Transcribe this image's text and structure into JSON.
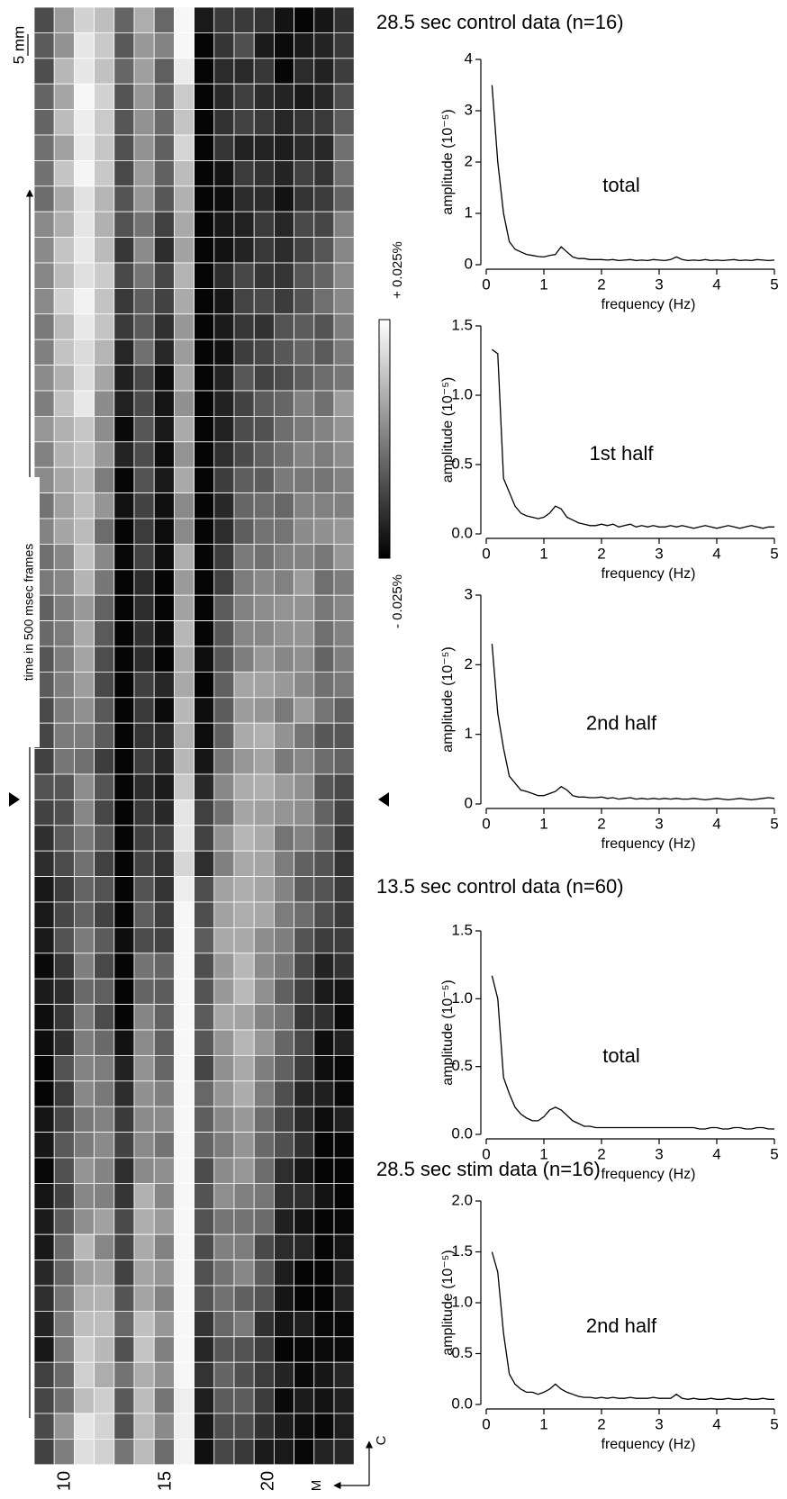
{
  "image_panel": {
    "scale_label": "5 mm",
    "time_label": "time  in  500 msec  frames",
    "colorbar_top": "+ 0.025%",
    "colorbar_bottom": "- 0.025%",
    "column_labels": [
      "10",
      "15",
      "20"
    ],
    "axis_m": "M",
    "axis_c": "C"
  },
  "chart_data": [
    {
      "type": "line",
      "title": "28.5 sec control data (n=16)",
      "annotation": "total",
      "x_label": "frequency (Hz)",
      "y_label": "amplitude (10⁻⁵)",
      "color": "#000000",
      "xlim": [
        0,
        5
      ],
      "xticks": [
        0,
        1,
        2,
        3,
        4,
        5
      ],
      "ylim": [
        0,
        4
      ],
      "yticks": [
        0,
        1,
        2,
        3,
        4
      ],
      "x": [
        0.1,
        0.2,
        0.3,
        0.4,
        0.5,
        0.6,
        0.7,
        0.8,
        0.9,
        1.0,
        1.1,
        1.2,
        1.3,
        1.4,
        1.5,
        1.6,
        1.7,
        1.8,
        1.9,
        2.0,
        2.1,
        2.2,
        2.3,
        2.4,
        2.5,
        2.6,
        2.7,
        2.8,
        2.9,
        3.0,
        3.1,
        3.2,
        3.3,
        3.4,
        3.5,
        3.6,
        3.7,
        3.8,
        3.9,
        4.0,
        4.1,
        4.2,
        4.3,
        4.4,
        4.5,
        4.6,
        4.7,
        4.8,
        4.9,
        5.0
      ],
      "values": [
        3.5,
        2.0,
        1.0,
        0.45,
        0.3,
        0.25,
        0.2,
        0.18,
        0.16,
        0.15,
        0.18,
        0.2,
        0.35,
        0.25,
        0.15,
        0.12,
        0.12,
        0.1,
        0.1,
        0.1,
        0.09,
        0.1,
        0.08,
        0.09,
        0.1,
        0.08,
        0.09,
        0.08,
        0.1,
        0.09,
        0.08,
        0.1,
        0.15,
        0.1,
        0.08,
        0.09,
        0.08,
        0.1,
        0.08,
        0.09,
        0.08,
        0.09,
        0.1,
        0.08,
        0.09,
        0.08,
        0.1,
        0.09,
        0.08,
        0.09
      ]
    },
    {
      "type": "line",
      "annotation": "1st half",
      "x_label": "frequency (Hz)",
      "y_label": "amplitude (10⁻⁵)",
      "color": "#000000",
      "xlim": [
        0,
        5
      ],
      "xticks": [
        0,
        1,
        2,
        3,
        4,
        5
      ],
      "ylim": [
        0,
        1.5
      ],
      "yticks": [
        {
          "value": 0,
          "label": "0.0"
        },
        0.5,
        {
          "value": 1,
          "label": "1.0"
        },
        1.5
      ],
      "x": [
        0.1,
        0.2,
        0.3,
        0.4,
        0.5,
        0.6,
        0.7,
        0.8,
        0.9,
        1.0,
        1.1,
        1.2,
        1.3,
        1.4,
        1.5,
        1.6,
        1.7,
        1.8,
        1.9,
        2.0,
        2.1,
        2.2,
        2.3,
        2.4,
        2.5,
        2.6,
        2.7,
        2.8,
        2.9,
        3.0,
        3.1,
        3.2,
        3.3,
        3.4,
        3.5,
        3.6,
        3.7,
        3.8,
        3.9,
        4.0,
        4.1,
        4.2,
        4.3,
        4.4,
        4.5,
        4.6,
        4.7,
        4.8,
        4.9,
        5.0
      ],
      "values": [
        1.33,
        1.3,
        0.4,
        0.3,
        0.2,
        0.15,
        0.13,
        0.12,
        0.11,
        0.12,
        0.15,
        0.2,
        0.18,
        0.12,
        0.1,
        0.08,
        0.07,
        0.06,
        0.06,
        0.07,
        0.06,
        0.07,
        0.05,
        0.06,
        0.07,
        0.05,
        0.06,
        0.05,
        0.06,
        0.05,
        0.05,
        0.06,
        0.05,
        0.06,
        0.05,
        0.04,
        0.05,
        0.06,
        0.05,
        0.04,
        0.05,
        0.06,
        0.05,
        0.04,
        0.05,
        0.06,
        0.05,
        0.04,
        0.05,
        0.05
      ]
    },
    {
      "type": "line",
      "annotation": "2nd half",
      "x_label": "frequency (Hz)",
      "y_label": "amplitude (10⁻⁵)",
      "color": "#000000",
      "xlim": [
        0,
        5
      ],
      "xticks": [
        0,
        1,
        2,
        3,
        4,
        5
      ],
      "ylim": [
        0,
        3
      ],
      "yticks": [
        0,
        1,
        2,
        3
      ],
      "x": [
        0.1,
        0.2,
        0.3,
        0.4,
        0.5,
        0.6,
        0.7,
        0.8,
        0.9,
        1.0,
        1.1,
        1.2,
        1.3,
        1.4,
        1.5,
        1.6,
        1.7,
        1.8,
        1.9,
        2.0,
        2.1,
        2.2,
        2.3,
        2.4,
        2.5,
        2.6,
        2.7,
        2.8,
        2.9,
        3.0,
        3.1,
        3.2,
        3.3,
        3.4,
        3.5,
        3.6,
        3.7,
        3.8,
        3.9,
        4.0,
        4.1,
        4.2,
        4.3,
        4.4,
        4.5,
        4.6,
        4.7,
        4.8,
        4.9,
        5.0
      ],
      "values": [
        2.3,
        1.3,
        0.8,
        0.4,
        0.3,
        0.2,
        0.18,
        0.15,
        0.12,
        0.12,
        0.15,
        0.18,
        0.25,
        0.2,
        0.12,
        0.1,
        0.1,
        0.09,
        0.09,
        0.1,
        0.08,
        0.09,
        0.07,
        0.08,
        0.09,
        0.07,
        0.08,
        0.07,
        0.08,
        0.07,
        0.08,
        0.07,
        0.08,
        0.07,
        0.07,
        0.08,
        0.07,
        0.06,
        0.07,
        0.08,
        0.07,
        0.06,
        0.07,
        0.08,
        0.07,
        0.06,
        0.07,
        0.08,
        0.09,
        0.08
      ]
    },
    {
      "type": "line",
      "title": "13.5 sec control data (n=60)",
      "annotation": "total",
      "x_label": "frequency (Hz)",
      "y_label": "amplitude (10⁻⁵)",
      "color": "#000000",
      "xlim": [
        0,
        5
      ],
      "xticks": [
        0,
        1,
        2,
        3,
        4,
        5
      ],
      "ylim": [
        0,
        1.5
      ],
      "yticks": [
        {
          "value": 0,
          "label": "0.0"
        },
        0.5,
        {
          "value": 1,
          "label": "1.0"
        },
        1.5
      ],
      "x": [
        0.1,
        0.2,
        0.3,
        0.4,
        0.5,
        0.6,
        0.7,
        0.8,
        0.9,
        1.0,
        1.1,
        1.2,
        1.3,
        1.4,
        1.5,
        1.6,
        1.7,
        1.8,
        1.9,
        2.0,
        2.1,
        2.2,
        2.3,
        2.4,
        2.5,
        2.6,
        2.7,
        2.8,
        2.9,
        3.0,
        3.1,
        3.2,
        3.3,
        3.4,
        3.5,
        3.6,
        3.7,
        3.8,
        3.9,
        4.0,
        4.1,
        4.2,
        4.3,
        4.4,
        4.5,
        4.6,
        4.7,
        4.8,
        4.9,
        5.0
      ],
      "values": [
        1.17,
        1.0,
        0.42,
        0.3,
        0.2,
        0.15,
        0.12,
        0.1,
        0.1,
        0.13,
        0.18,
        0.2,
        0.18,
        0.14,
        0.1,
        0.08,
        0.06,
        0.06,
        0.05,
        0.05,
        0.05,
        0.05,
        0.05,
        0.05,
        0.05,
        0.05,
        0.05,
        0.05,
        0.05,
        0.05,
        0.05,
        0.05,
        0.05,
        0.05,
        0.05,
        0.05,
        0.04,
        0.04,
        0.05,
        0.05,
        0.04,
        0.04,
        0.05,
        0.05,
        0.04,
        0.04,
        0.05,
        0.05,
        0.04,
        0.04
      ]
    },
    {
      "type": "line",
      "title": "28.5 sec stim data (n=16)",
      "annotation": "2nd half",
      "x_label": "frequency (Hz)",
      "y_label": "amplitude (10⁻⁵)",
      "color": "#000000",
      "xlim": [
        0,
        5
      ],
      "xticks": [
        0,
        1,
        2,
        3,
        4,
        5
      ],
      "ylim": [
        0,
        2
      ],
      "yticks": [
        {
          "value": 0,
          "label": "0.0"
        },
        0.5,
        {
          "value": 1,
          "label": "1.0"
        },
        1.5,
        {
          "value": 2,
          "label": "2.0"
        }
      ],
      "x": [
        0.1,
        0.2,
        0.3,
        0.4,
        0.5,
        0.6,
        0.7,
        0.8,
        0.9,
        1.0,
        1.1,
        1.2,
        1.3,
        1.4,
        1.5,
        1.6,
        1.7,
        1.8,
        1.9,
        2.0,
        2.1,
        2.2,
        2.3,
        2.4,
        2.5,
        2.6,
        2.7,
        2.8,
        2.9,
        3.0,
        3.1,
        3.2,
        3.3,
        3.4,
        3.5,
        3.6,
        3.7,
        3.8,
        3.9,
        4.0,
        4.1,
        4.2,
        4.3,
        4.4,
        4.5,
        4.6,
        4.7,
        4.8,
        4.9,
        5.0
      ],
      "values": [
        1.5,
        1.3,
        0.7,
        0.3,
        0.2,
        0.15,
        0.12,
        0.12,
        0.1,
        0.12,
        0.15,
        0.2,
        0.15,
        0.12,
        0.1,
        0.08,
        0.07,
        0.07,
        0.06,
        0.07,
        0.06,
        0.07,
        0.06,
        0.06,
        0.07,
        0.06,
        0.06,
        0.06,
        0.07,
        0.06,
        0.06,
        0.06,
        0.1,
        0.06,
        0.05,
        0.06,
        0.05,
        0.05,
        0.06,
        0.05,
        0.05,
        0.06,
        0.05,
        0.05,
        0.06,
        0.05,
        0.05,
        0.06,
        0.05,
        0.05
      ]
    }
  ]
}
